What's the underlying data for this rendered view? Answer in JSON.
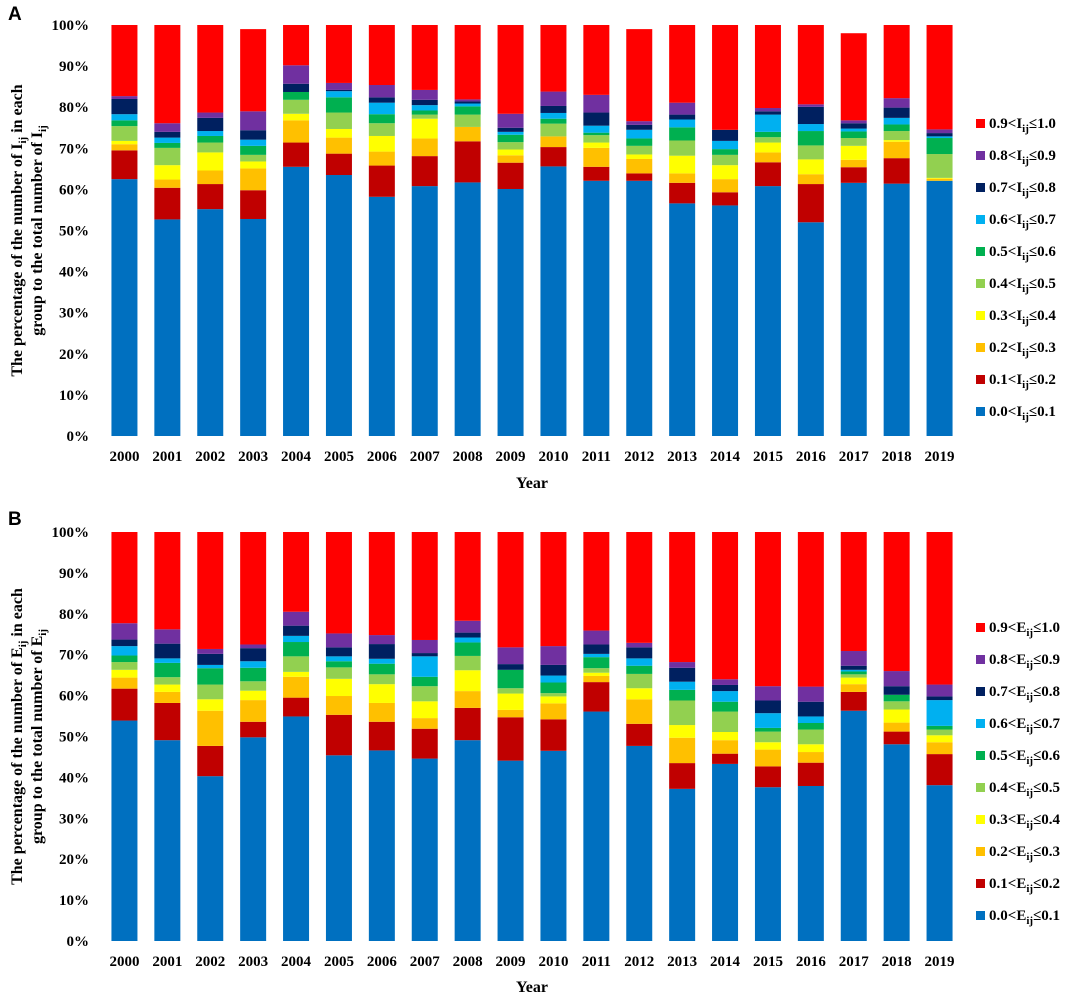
{
  "chart_data": [
    {
      "type": "bar",
      "stacked": true,
      "panel_label": "A",
      "categories": [
        "2000",
        "2001",
        "2002",
        "2003",
        "2004",
        "2005",
        "2006",
        "2007",
        "2008",
        "2009",
        "2010",
        "2011",
        "2012",
        "2013",
        "2014",
        "2015",
        "2016",
        "2017",
        "2018",
        "2019"
      ],
      "xlabel": "Year",
      "ylabel": {
        "line1_prefix": "The percentage of the number of ",
        "line1_var": "I",
        "line1_sub": "ij",
        "line1_suffix": " in each",
        "line2_prefix": "group to the total number of ",
        "line2_var": "I",
        "line2_sub": "ij"
      },
      "ylim": [
        0,
        100
      ],
      "yticks": [
        "0%",
        "10%",
        "20%",
        "30%",
        "40%",
        "50%",
        "60%",
        "70%",
        "80%",
        "90%",
        "100%"
      ],
      "legend_position": "right",
      "series": [
        {
          "name": "0.0<Iij≤0.1",
          "label": {
            "pre": "0.0<",
            "var": "I",
            "sub": "ij",
            "post": "≤0.1"
          },
          "color": "#0070c0",
          "values": [
            62.5,
            52.7,
            55.2,
            52.8,
            65.5,
            63.5,
            58.2,
            60.8,
            61.7,
            60.1,
            65.6,
            62.1,
            62.1,
            56.6,
            56.1,
            60.8,
            52,
            61.6,
            61.4,
            62.1
          ]
        },
        {
          "name": "0.1<Iij≤0.2",
          "label": {
            "pre": "0.1<",
            "var": "I",
            "sub": "ij",
            "post": "≤0.2"
          },
          "color": "#c00000",
          "values": [
            7,
            7.7,
            6.1,
            7,
            5.9,
            5.2,
            7.6,
            7.3,
            10,
            6.4,
            4.7,
            3.4,
            1.8,
            5,
            3.2,
            5.8,
            9.3,
            3.8,
            6.2,
            0
          ]
        },
        {
          "name": "0.2<Iij≤0.3",
          "label": {
            "pre": "0.2<",
            "var": "I",
            "sub": "ij",
            "post": "≤0.3"
          },
          "color": "#ffc000",
          "values": [
            1.5,
            2,
            3.3,
            5.3,
            5.4,
            3.9,
            3.4,
            4.3,
            3.5,
            1.8,
            2.6,
            4.6,
            3.5,
            2.3,
            3.2,
            2.4,
            2.4,
            1.8,
            4,
            0.5
          ]
        },
        {
          "name": "0.3<Iij≤0.4",
          "label": {
            "pre": "0.3<",
            "var": "I",
            "sub": "ij",
            "post": "≤0.4"
          },
          "color": "#ffff00",
          "values": [
            0.8,
            3.5,
            4.4,
            1.7,
            1.6,
            2.1,
            3.8,
            4.8,
            0,
            1.4,
            0,
            1.3,
            1.1,
            4.3,
            3.4,
            2.4,
            3.6,
            3.4,
            0.4,
            0.2
          ]
        },
        {
          "name": "0.4<Iij≤0.5",
          "label": {
            "pre": "0.4<",
            "var": "I",
            "sub": "ij",
            "post": "≤0.5"
          },
          "color": "#92d050",
          "values": [
            3.6,
            4.2,
            2.4,
            1.6,
            3.4,
            4,
            3.1,
            1,
            3,
            1.8,
            3.1,
            1.8,
            2.1,
            3.7,
            2.5,
            1.3,
            3.4,
            1.9,
            2.2,
            5.8
          ]
        },
        {
          "name": "0.5<Iij≤0.6",
          "label": {
            "pre": "0.5<",
            "var": "I",
            "sub": "ij",
            "post": "≤0.6"
          },
          "color": "#00b050",
          "values": [
            1.4,
            1.2,
            1.6,
            2.2,
            1.9,
            3.7,
            2.2,
            1,
            2,
            1.8,
            1.2,
            0.6,
            1.8,
            3.2,
            1.4,
            1.3,
            3.5,
            1.6,
            1.6,
            3.9
          ]
        },
        {
          "name": "0.6<Iij≤0.7",
          "label": {
            "pre": "0.6<",
            "var": "I",
            "sub": "ij",
            "post": "≤0.7"
          },
          "color": "#00b0f0",
          "values": [
            1.5,
            1.3,
            1.2,
            1.5,
            0,
            1.5,
            2.8,
            1.3,
            0.7,
            0.7,
            1.4,
            1.7,
            2.1,
            1.9,
            2,
            4.2,
            1.7,
            0.7,
            1.6,
            0.4
          ]
        },
        {
          "name": "0.7<Iij≤0.8",
          "label": {
            "pre": "0.7<",
            "var": "I",
            "sub": "ij",
            "post": "≤0.8"
          },
          "color": "#002060",
          "values": [
            3.7,
            1.4,
            3.2,
            2.3,
            2,
            0.3,
            1.3,
            1.3,
            0.5,
            1,
            1.7,
            3.2,
            1.2,
            1.2,
            2.7,
            0.8,
            4.2,
            1.3,
            2.5,
            0.8
          ]
        },
        {
          "name": "0.8<Iij≤0.9",
          "label": {
            "pre": "0.8<",
            "var": "I",
            "sub": "ij",
            "post": "≤0.9"
          },
          "color": "#7030a0",
          "values": [
            0.7,
            2.1,
            1.3,
            4.6,
            4.5,
            1.7,
            3,
            2.4,
            0.5,
            3.4,
            3.5,
            4.3,
            0.9,
            2.9,
            0,
            0.8,
            0.6,
            0.7,
            2.3,
            0.9
          ]
        },
        {
          "name": "0.9<Iij≤1.0",
          "label": {
            "pre": "0.9<",
            "var": "I",
            "sub": "ij",
            "post": "≤1.0"
          },
          "color": "#ff0000",
          "values": [
            17.3,
            23.9,
            21.3,
            20,
            9.8,
            14.1,
            14.6,
            15.8,
            18.1,
            21.6,
            16.2,
            17,
            22.4,
            18.9,
            25.5,
            20.2,
            19.3,
            21.2,
            17.8,
            25.4
          ]
        }
      ]
    },
    {
      "type": "bar",
      "stacked": true,
      "panel_label": "B",
      "categories": [
        "2000",
        "2001",
        "2002",
        "2003",
        "2004",
        "2005",
        "2006",
        "2007",
        "2008",
        "2009",
        "2010",
        "2011",
        "2012",
        "2013",
        "2014",
        "2015",
        "2016",
        "2017",
        "2018",
        "2019"
      ],
      "xlabel": "Year",
      "ylabel": {
        "line1_prefix": "The percentage of the number of ",
        "line1_var": "E",
        "line1_sub": "ij",
        "line1_suffix": " in each",
        "line2_prefix": "group to the total number of ",
        "line2_var": "E",
        "line2_sub": "ij"
      },
      "ylim": [
        0,
        100
      ],
      "yticks": [
        "0%",
        "10%",
        "20%",
        "30%",
        "40%",
        "50%",
        "60%",
        "70%",
        "80%",
        "90%",
        "100%"
      ],
      "legend_position": "right",
      "series": [
        {
          "name": "0.0<Eij≤0.1",
          "label": {
            "pre": "0.0<",
            "var": "E",
            "sub": "ij",
            "post": "≤0.1"
          },
          "color": "#0070c0",
          "values": [
            53.9,
            49.1,
            40.3,
            49.8,
            54.9,
            45.4,
            46.6,
            44.6,
            49.1,
            44.1,
            46.5,
            56.1,
            47.7,
            37.2,
            43.3,
            37.6,
            37.9,
            56.3,
            48.1,
            38.1
          ]
        },
        {
          "name": "0.1<Eij≤0.2",
          "label": {
            "pre": "0.1<",
            "var": "E",
            "sub": "ij",
            "post": "≤0.2"
          },
          "color": "#c00000",
          "values": [
            7.8,
            9.1,
            7.4,
            3.8,
            4.6,
            9.9,
            7,
            7.3,
            7.9,
            10.6,
            7.7,
            7.2,
            5.4,
            6.3,
            2.5,
            5.1,
            5.7,
            4.6,
            3.1,
            7.6
          ]
        },
        {
          "name": "0.2<Eij≤0.3",
          "label": {
            "pre": "0.2<",
            "var": "E",
            "sub": "ij",
            "post": "≤0.3"
          },
          "color": "#ffc000",
          "values": [
            2.7,
            2.7,
            8.6,
            5.3,
            5.1,
            4.6,
            4.6,
            2.6,
            4.1,
            1.8,
            3.9,
            1.5,
            6,
            6.2,
            3.3,
            4.1,
            2.6,
            1.9,
            2.2,
            2.9
          ]
        },
        {
          "name": "0.3<Eij≤0.4",
          "label": {
            "pre": "0.3<",
            "var": "E",
            "sub": "ij",
            "post": "≤0.4"
          },
          "color": "#ffff00",
          "values": [
            1.9,
            1.8,
            2.8,
            2.3,
            1.2,
            4.2,
            4.6,
            4.1,
            5.1,
            4,
            1.7,
            0.8,
            2.7,
            3.1,
            2,
            1.8,
            1.9,
            1.6,
            3.2,
            1.7
          ]
        },
        {
          "name": "0.4<Eij≤0.5",
          "label": {
            "pre": "0.4<",
            "var": "E",
            "sub": "ij",
            "post": "≤0.5"
          },
          "color": "#92d050",
          "values": [
            1.9,
            1.8,
            3.6,
            2.3,
            3.8,
            2.8,
            2.4,
            3.7,
            3.5,
            1.3,
            0.8,
            1.1,
            3.5,
            6,
            5,
            2.6,
            3.6,
            0.8,
            2,
            1.4
          ]
        },
        {
          "name": "0.5<Eij≤0.6",
          "label": {
            "pre": "0.5<",
            "var": "E",
            "sub": "ij",
            "post": "≤0.6"
          },
          "color": "#00b050",
          "values": [
            1.6,
            3.5,
            4,
            3.3,
            3.5,
            1.5,
            2.6,
            2.3,
            3.3,
            4.5,
            2.6,
            2.7,
            2,
            2.6,
            2.4,
            0.9,
            1.6,
            0.7,
            1.6,
            0.9
          ]
        },
        {
          "name": "0.6<Eij≤0.7",
          "label": {
            "pre": "0.6<",
            "var": "E",
            "sub": "ij",
            "post": "≤0.7"
          },
          "color": "#00b0f0",
          "values": [
            2.3,
            1.1,
            0.8,
            1.6,
            1.5,
            1.2,
            1.2,
            5,
            1.2,
            0,
            1.7,
            0.8,
            1.8,
            2,
            2.6,
            3.6,
            1.6,
            0.4,
            0,
            6.3
          ]
        },
        {
          "name": "0.7<Eij≤0.8",
          "label": {
            "pre": "0.7<",
            "var": "E",
            "sub": "ij",
            "post": "≤0.8"
          },
          "color": "#002060",
          "values": [
            1.6,
            3.6,
            2.7,
            3.2,
            2.5,
            2.2,
            3.6,
            0.8,
            1.2,
            1.4,
            2.6,
            2.3,
            2.7,
            3.4,
            1.5,
            3.1,
            3.6,
            1,
            2.1,
            0.9
          ]
        },
        {
          "name": "0.8<Eij≤0.9",
          "label": {
            "pre": "0.8<",
            "var": "E",
            "sub": "ij",
            "post": "≤0.9"
          },
          "color": "#7030a0",
          "values": [
            4,
            3.5,
            1.2,
            0.9,
            3.4,
            3.4,
            2.2,
            3.2,
            2.9,
            4.1,
            4.6,
            3.4,
            1.1,
            1.4,
            1.4,
            3.5,
            3.7,
            3.6,
            3.7,
            2.9
          ]
        },
        {
          "name": "0.9<Eij≤1.0",
          "label": {
            "pre": "0.9<",
            "var": "E",
            "sub": "ij",
            "post": "≤1.0"
          },
          "color": "#ff0000",
          "values": [
            22.3,
            23.8,
            28.6,
            27.5,
            19.5,
            24.8,
            25.2,
            26.4,
            21.7,
            28.2,
            27.9,
            24.1,
            27.1,
            31.8,
            36,
            37.7,
            37.8,
            29.1,
            34,
            37.3
          ]
        }
      ]
    }
  ]
}
